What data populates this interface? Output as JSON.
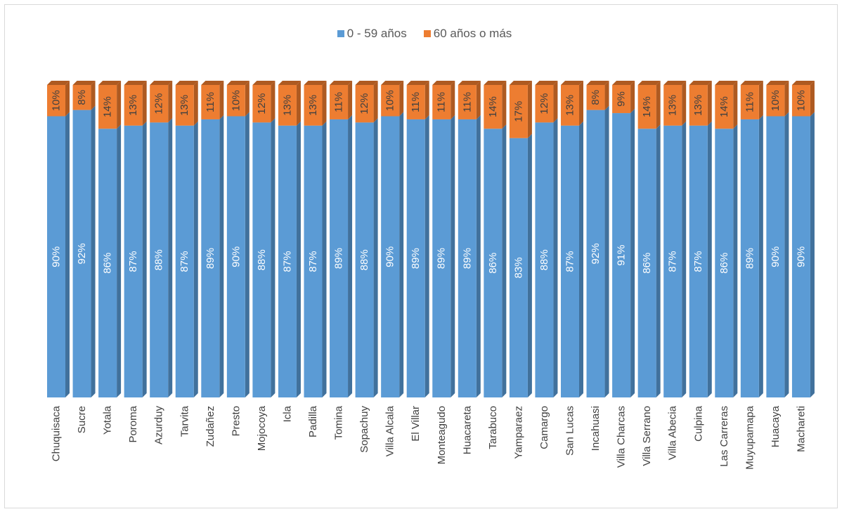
{
  "colors": {
    "series0": "#5b9bd5",
    "series1": "#ed7d31",
    "series0_side": "#41719c",
    "series1_side": "#ae5a21"
  },
  "legend": {
    "item0": "0 - 59 años",
    "item1": "60 años o más"
  },
  "chart_data": {
    "type": "bar",
    "stacked": "percent",
    "categories": [
      "Chuquisaca",
      "Sucre",
      "Yotala",
      "Poroma",
      "Azurduy",
      "Tarvita",
      "Zudañez",
      "Presto",
      "Mojocoya",
      "Icla",
      "Padilla",
      "Tomina",
      "Sopachuy",
      "Villa Alcala",
      "El Villar",
      "Monteagudo",
      "Huacareta",
      "Tarabuco",
      "Yamparaez",
      "Camargo",
      "San Lucas",
      "Incahuasi",
      "Villa Charcas",
      "Villa Serrano",
      "Villa Abecia",
      "Culpina",
      "Las Carreras",
      "Muyupamapa",
      "Huacaya",
      "Machareti"
    ],
    "series": [
      {
        "name": "0 - 59 años",
        "values": [
          90,
          92,
          86,
          87,
          88,
          87,
          89,
          90,
          88,
          87,
          87,
          89,
          88,
          90,
          89,
          89,
          89,
          86,
          83,
          88,
          87,
          92,
          91,
          86,
          87,
          87,
          86,
          89,
          90,
          90
        ]
      },
      {
        "name": "60 años o más",
        "values": [
          10,
          8,
          14,
          13,
          12,
          13,
          11,
          10,
          12,
          13,
          13,
          11,
          12,
          10,
          11,
          11,
          11,
          14,
          17,
          12,
          13,
          8,
          9,
          14,
          13,
          13,
          14,
          11,
          10,
          10
        ]
      }
    ],
    "ylim": [
      0,
      100
    ],
    "legend_position": "top",
    "grid": false
  }
}
